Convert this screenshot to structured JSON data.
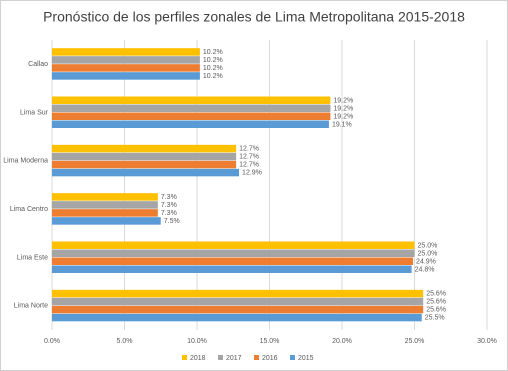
{
  "chart_data": {
    "type": "hbar",
    "title": "Pronóstico de los perfiles zonales de Lima Metropolitana 2015-2018",
    "categories": [
      "Callao",
      "Lima Sur",
      "Lima Moderna",
      "Lima Centro",
      "Lima Este",
      "Lima Norte"
    ],
    "series": [
      {
        "name": "2018",
        "color": "#ffc000",
        "values": [
          10.2,
          19.2,
          12.7,
          7.3,
          25.0,
          25.6
        ],
        "value_labels": [
          "10.2%",
          "19.2%",
          "12.7%",
          "7.3%",
          "25.0%",
          "25.6%"
        ]
      },
      {
        "name": "2017",
        "color": "#a5a5a5",
        "values": [
          10.2,
          19.2,
          12.7,
          7.3,
          25.0,
          25.6
        ],
        "value_labels": [
          "10.2%",
          "19.2%",
          "12.7%",
          "7.3%",
          "25.0%",
          "25.6%"
        ]
      },
      {
        "name": "2016",
        "color": "#ed7d31",
        "values": [
          10.2,
          19.2,
          12.7,
          7.3,
          24.9,
          25.6
        ],
        "value_labels": [
          "10.2%",
          "19.2%",
          "12.7%",
          "7.3%",
          "24.9%",
          "25.6%"
        ]
      },
      {
        "name": "2015",
        "color": "#5b9bd5",
        "values": [
          10.2,
          19.1,
          12.9,
          7.5,
          24.8,
          25.5
        ],
        "value_labels": [
          "10.2%",
          "19.1%",
          "12.9%",
          "7.5%",
          "24.8%",
          "25.5%"
        ]
      }
    ],
    "xlim": [
      0,
      30
    ],
    "xticks": [
      {
        "value": 0,
        "label": "0.0%"
      },
      {
        "value": 5,
        "label": "5.0%"
      },
      {
        "value": 10,
        "label": "10.0%"
      },
      {
        "value": 15,
        "label": "15.0%"
      },
      {
        "value": 20,
        "label": "20.0%"
      },
      {
        "value": 25,
        "label": "25.0%"
      },
      {
        "value": 30,
        "label": "30.0%"
      }
    ],
    "grid": true,
    "legend": "bottom"
  }
}
